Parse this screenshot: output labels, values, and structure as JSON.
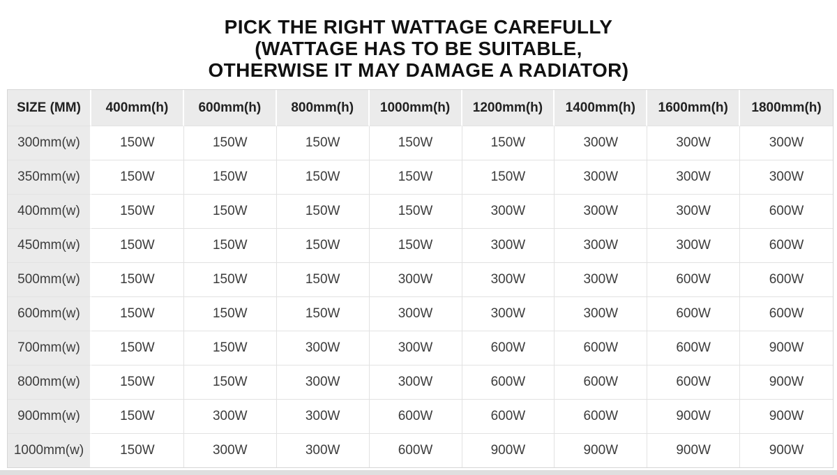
{
  "title": {
    "line1": "PICK THE RIGHT WATTAGE CAREFULLY",
    "line2": "(WATTAGE HAS TO BE SUITABLE,",
    "line3": "OTHERWISE IT MAY DAMAGE A RADIATOR)"
  },
  "chart_data": {
    "type": "table",
    "title": "PICK THE RIGHT WATTAGE CAREFULLY",
    "subtitle": "(WATTAGE HAS TO BE SUITABLE, OTHERWISE IT MAY DAMAGE A RADIATOR)",
    "columns": [
      "SIZE (MM)",
      "400mm(h)",
      "600mm(h)",
      "800mm(h)",
      "1000mm(h)",
      "1200mm(h)",
      "1400mm(h)",
      "1600mm(h)",
      "1800mm(h)"
    ],
    "rows": [
      {
        "size": "300mm(w)",
        "values": [
          "150W",
          "150W",
          "150W",
          "150W",
          "150W",
          "300W",
          "300W",
          "300W"
        ]
      },
      {
        "size": "350mm(w)",
        "values": [
          "150W",
          "150W",
          "150W",
          "150W",
          "150W",
          "300W",
          "300W",
          "300W"
        ]
      },
      {
        "size": "400mm(w)",
        "values": [
          "150W",
          "150W",
          "150W",
          "150W",
          "300W",
          "300W",
          "300W",
          "600W"
        ]
      },
      {
        "size": "450mm(w)",
        "values": [
          "150W",
          "150W",
          "150W",
          "150W",
          "300W",
          "300W",
          "300W",
          "600W"
        ]
      },
      {
        "size": "500mm(w)",
        "values": [
          "150W",
          "150W",
          "150W",
          "300W",
          "300W",
          "300W",
          "600W",
          "600W"
        ]
      },
      {
        "size": "600mm(w)",
        "values": [
          "150W",
          "150W",
          "150W",
          "300W",
          "300W",
          "300W",
          "600W",
          "600W"
        ]
      },
      {
        "size": "700mm(w)",
        "values": [
          "150W",
          "150W",
          "300W",
          "300W",
          "600W",
          "600W",
          "600W",
          "900W"
        ]
      },
      {
        "size": "800mm(w)",
        "values": [
          "150W",
          "150W",
          "300W",
          "300W",
          "600W",
          "600W",
          "600W",
          "900W"
        ]
      },
      {
        "size": "900mm(w)",
        "values": [
          "150W",
          "300W",
          "300W",
          "600W",
          "600W",
          "600W",
          "900W",
          "900W"
        ]
      },
      {
        "size": "1000mm(w)",
        "values": [
          "150W",
          "300W",
          "300W",
          "600W",
          "900W",
          "900W",
          "900W",
          "900W"
        ]
      }
    ]
  },
  "colors": {
    "title_text": "#111111",
    "header_bg": "#ebebeb",
    "row_header_bg": "#ebebeb",
    "header_text": "#222222",
    "text": "#3c3c3c",
    "cell_border": "#e2e2e2",
    "outer_border": "#d6d6d6",
    "bottom_bar": "#dfdfdf"
  }
}
